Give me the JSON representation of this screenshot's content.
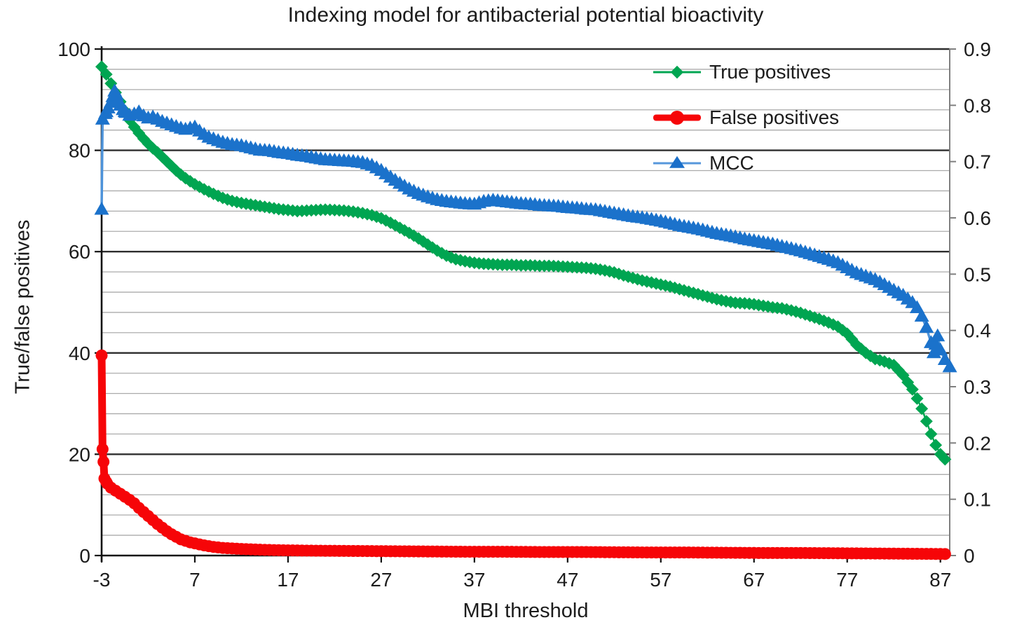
{
  "title": "Indexing model for antibacterial potential bioactivity",
  "chart_data": {
    "type": "line",
    "title": "Indexing model for antibacterial potential bioactivity",
    "xlabel": "MBI threshold",
    "ylabel_left": "True/false positives",
    "ylabel_right": "",
    "x_axis": {
      "range": [
        -3,
        88
      ],
      "ticks": [
        -3,
        7,
        17,
        27,
        37,
        47,
        57,
        67,
        77,
        87
      ]
    },
    "y_axis_left": {
      "range": [
        0,
        100
      ],
      "ticks": [
        0,
        20,
        40,
        60,
        80,
        100
      ],
      "major_gridline_step": 20,
      "minor_gridline_step": 4
    },
    "y_axis_right": {
      "range": [
        0,
        0.9
      ],
      "ticks": [
        0,
        0.1,
        0.2,
        0.3,
        0.4,
        0.5,
        0.6,
        0.7,
        0.8,
        0.9
      ],
      "tick_labels": [
        "0",
        "0.1",
        "0.2",
        "0.3",
        "0.4",
        "0.5",
        "0.6",
        "0.7",
        "0.8",
        "0.9"
      ]
    },
    "legend_position": "top-right",
    "grid": true,
    "marker_x_step": 0.5,
    "series": [
      {
        "name": "True positives",
        "axis": "left",
        "marker": "diamond",
        "color": "#00A551",
        "line_color": "#00A551",
        "line_width": 2.5,
        "points": [
          [
            -3,
            96.5
          ],
          [
            -2.5,
            95
          ],
          [
            -2,
            93.2
          ],
          [
            -1.5,
            91.4
          ],
          [
            -1,
            89.6
          ],
          [
            -0.5,
            87.8
          ],
          [
            0,
            86
          ],
          [
            0.5,
            84.6
          ],
          [
            1,
            83.4
          ],
          [
            1.5,
            82.3
          ],
          [
            2,
            81.3
          ],
          [
            2.5,
            80.4
          ],
          [
            3,
            79.6
          ],
          [
            3.5,
            78.7
          ],
          [
            4,
            77.8
          ],
          [
            4.5,
            76.9
          ],
          [
            5,
            76
          ],
          [
            5.5,
            75.2
          ],
          [
            6,
            74.5
          ],
          [
            6.5,
            73.9
          ],
          [
            7,
            73.3
          ],
          [
            7.5,
            72.8
          ],
          [
            8,
            72.3
          ],
          [
            9,
            71.4
          ],
          [
            10,
            70.6
          ],
          [
            11,
            70
          ],
          [
            12,
            69.6
          ],
          [
            13,
            69.3
          ],
          [
            14,
            69
          ],
          [
            15,
            68.7
          ],
          [
            16,
            68.4
          ],
          [
            17,
            68.2
          ],
          [
            18,
            68
          ],
          [
            19,
            68.1
          ],
          [
            20,
            68.2
          ],
          [
            21,
            68.3
          ],
          [
            22,
            68.2
          ],
          [
            23,
            68.1
          ],
          [
            24,
            67.9
          ],
          [
            25,
            67.6
          ],
          [
            26,
            67.2
          ],
          [
            27,
            66.6
          ],
          [
            28,
            65.7
          ],
          [
            29,
            64.7
          ],
          [
            30,
            63.7
          ],
          [
            31,
            62.6
          ],
          [
            32,
            61.4
          ],
          [
            33,
            60.2
          ],
          [
            34,
            59.2
          ],
          [
            35,
            58.5
          ],
          [
            36,
            58.1
          ],
          [
            37,
            57.8
          ],
          [
            38,
            57.6
          ],
          [
            39,
            57.5
          ],
          [
            40,
            57.4
          ],
          [
            41,
            57.4
          ],
          [
            42,
            57.3
          ],
          [
            43,
            57.3
          ],
          [
            44,
            57.2
          ],
          [
            45,
            57.2
          ],
          [
            46,
            57.1
          ],
          [
            47,
            57
          ],
          [
            48,
            56.9
          ],
          [
            49,
            56.8
          ],
          [
            50,
            56.6
          ],
          [
            51,
            56.3
          ],
          [
            52,
            55.9
          ],
          [
            53,
            55.3
          ],
          [
            54,
            54.8
          ],
          [
            55,
            54.3
          ],
          [
            56,
            53.9
          ],
          [
            57,
            53.5
          ],
          [
            58,
            53.1
          ],
          [
            59,
            52.6
          ],
          [
            60,
            52.1
          ],
          [
            61,
            51.6
          ],
          [
            62,
            51.1
          ],
          [
            63,
            50.6
          ],
          [
            64,
            50.2
          ],
          [
            65,
            49.9
          ],
          [
            66,
            49.8
          ],
          [
            67,
            49.6
          ],
          [
            68,
            49.3
          ],
          [
            69,
            49
          ],
          [
            70,
            48.8
          ],
          [
            71,
            48.4
          ],
          [
            72,
            47.9
          ],
          [
            73,
            47.3
          ],
          [
            74,
            46.7
          ],
          [
            75,
            46
          ],
          [
            76,
            45.2
          ],
          [
            77,
            43.8
          ],
          [
            78,
            41.6
          ],
          [
            79,
            40
          ],
          [
            80,
            38.8
          ],
          [
            81,
            38.3
          ],
          [
            82,
            37.6
          ],
          [
            83,
            35.6
          ],
          [
            84,
            32.8
          ],
          [
            84.5,
            31
          ],
          [
            85,
            29
          ],
          [
            85.5,
            26.5
          ],
          [
            86,
            24
          ],
          [
            86.5,
            21.8
          ],
          [
            87,
            20
          ],
          [
            87.5,
            19
          ]
        ]
      },
      {
        "name": "False positives",
        "axis": "left",
        "marker": "circle",
        "color": "#F60508",
        "line_color": "#F60508",
        "line_width": 11,
        "points": [
          [
            -3,
            39.5
          ],
          [
            -2.9,
            21
          ],
          [
            -2.8,
            18.5
          ],
          [
            -2.7,
            15.2
          ],
          [
            -2.4,
            14.2
          ],
          [
            -2,
            13.4
          ],
          [
            -1.5,
            12.8
          ],
          [
            -1,
            12.2
          ],
          [
            -0.5,
            11.6
          ],
          [
            0,
            11
          ],
          [
            0.5,
            10.3
          ],
          [
            1,
            9.4
          ],
          [
            1.5,
            8.6
          ],
          [
            2,
            7.8
          ],
          [
            2.5,
            7
          ],
          [
            3,
            6.2
          ],
          [
            3.5,
            5.5
          ],
          [
            4,
            4.8
          ],
          [
            4.5,
            4.2
          ],
          [
            5,
            3.7
          ],
          [
            5.5,
            3.2
          ],
          [
            6,
            2.9
          ],
          [
            6.5,
            2.6
          ],
          [
            7,
            2.4
          ],
          [
            7.5,
            2.2
          ],
          [
            8,
            2
          ],
          [
            9,
            1.7
          ],
          [
            10,
            1.5
          ],
          [
            11,
            1.4
          ],
          [
            12,
            1.3
          ],
          [
            14,
            1.15
          ],
          [
            16,
            1.05
          ],
          [
            18,
            1
          ],
          [
            20,
            0.95
          ],
          [
            24,
            0.9
          ],
          [
            28,
            0.85
          ],
          [
            32,
            0.8
          ],
          [
            36,
            0.75
          ],
          [
            40,
            0.75
          ],
          [
            44,
            0.7
          ],
          [
            48,
            0.7
          ],
          [
            52,
            0.65
          ],
          [
            56,
            0.6
          ],
          [
            60,
            0.6
          ],
          [
            64,
            0.55
          ],
          [
            68,
            0.5
          ],
          [
            72,
            0.5
          ],
          [
            76,
            0.45
          ],
          [
            80,
            0.4
          ],
          [
            84,
            0.35
          ],
          [
            87.5,
            0.3
          ]
        ]
      },
      {
        "name": "MCC",
        "axis": "right",
        "marker": "triangle",
        "color": "#1B72CB",
        "line_color": "#4D93DA",
        "line_width": 3.5,
        "points": [
          [
            -3,
            0.615
          ],
          [
            -2.9,
            0.775
          ],
          [
            -2.6,
            0.785
          ],
          [
            -2.3,
            0.795
          ],
          [
            -2,
            0.805
          ],
          [
            -1.8,
            0.815
          ],
          [
            -1.6,
            0.825
          ],
          [
            -1.4,
            0.818
          ],
          [
            -1.2,
            0.808
          ],
          [
            -1,
            0.8
          ],
          [
            -0.7,
            0.792
          ],
          [
            -0.4,
            0.787
          ],
          [
            0,
            0.782
          ],
          [
            0.5,
            0.784
          ],
          [
            1,
            0.788
          ],
          [
            1.5,
            0.781
          ],
          [
            2,
            0.777
          ],
          [
            2.5,
            0.779
          ],
          [
            3,
            0.775
          ],
          [
            3.5,
            0.771
          ],
          [
            4,
            0.768
          ],
          [
            4.5,
            0.765
          ],
          [
            5,
            0.762
          ],
          [
            5.5,
            0.759
          ],
          [
            6,
            0.757
          ],
          [
            6.5,
            0.759
          ],
          [
            7,
            0.761
          ],
          [
            7.5,
            0.754
          ],
          [
            8,
            0.748
          ],
          [
            8.5,
            0.743
          ],
          [
            9,
            0.74
          ],
          [
            10,
            0.734
          ],
          [
            11,
            0.73
          ],
          [
            12,
            0.728
          ],
          [
            13,
            0.724
          ],
          [
            14,
            0.72
          ],
          [
            15,
            0.719
          ],
          [
            16,
            0.716
          ],
          [
            17,
            0.714
          ],
          [
            18,
            0.711
          ],
          [
            19,
            0.709
          ],
          [
            20,
            0.706
          ],
          [
            21,
            0.703
          ],
          [
            22,
            0.702
          ],
          [
            23,
            0.701
          ],
          [
            24,
            0.7
          ],
          [
            25,
            0.698
          ],
          [
            26,
            0.693
          ],
          [
            27,
            0.684
          ],
          [
            28,
            0.672
          ],
          [
            29,
            0.661
          ],
          [
            30,
            0.651
          ],
          [
            31,
            0.643
          ],
          [
            32,
            0.637
          ],
          [
            33,
            0.632
          ],
          [
            34,
            0.629
          ],
          [
            35,
            0.627
          ],
          [
            36,
            0.625
          ],
          [
            37,
            0.624
          ],
          [
            38,
            0.629
          ],
          [
            39,
            0.631
          ],
          [
            40,
            0.629
          ],
          [
            41,
            0.627
          ],
          [
            42,
            0.625
          ],
          [
            43,
            0.624
          ],
          [
            44,
            0.622
          ],
          [
            45,
            0.621
          ],
          [
            46,
            0.62
          ],
          [
            47,
            0.618
          ],
          [
            48,
            0.617
          ],
          [
            49,
            0.615
          ],
          [
            50,
            0.614
          ],
          [
            51,
            0.611
          ],
          [
            52,
            0.608
          ],
          [
            53,
            0.605
          ],
          [
            54,
            0.602
          ],
          [
            55,
            0.6
          ],
          [
            56,
            0.597
          ],
          [
            57,
            0.594
          ],
          [
            58,
            0.59
          ],
          [
            59,
            0.586
          ],
          [
            60,
            0.583
          ],
          [
            61,
            0.58
          ],
          [
            62,
            0.576
          ],
          [
            63,
            0.572
          ],
          [
            64,
            0.569
          ],
          [
            65,
            0.566
          ],
          [
            66,
            0.562
          ],
          [
            67,
            0.559
          ],
          [
            68,
            0.556
          ],
          [
            69,
            0.553
          ],
          [
            70,
            0.549
          ],
          [
            71,
            0.545
          ],
          [
            72,
            0.541
          ],
          [
            73,
            0.536
          ],
          [
            74,
            0.531
          ],
          [
            75,
            0.526
          ],
          [
            76,
            0.52
          ],
          [
            77,
            0.511
          ],
          [
            78,
            0.502
          ],
          [
            79,
            0.496
          ],
          [
            80,
            0.49
          ],
          [
            81,
            0.481
          ],
          [
            82,
            0.471
          ],
          [
            83,
            0.462
          ],
          [
            84,
            0.449
          ],
          [
            84.5,
            0.44
          ],
          [
            85,
            0.425
          ],
          [
            85.5,
            0.405
          ],
          [
            86,
            0.378
          ],
          [
            86.3,
            0.36
          ],
          [
            86.7,
            0.39
          ],
          [
            87,
            0.365
          ],
          [
            87.5,
            0.348
          ],
          [
            88,
            0.335
          ]
        ]
      }
    ],
    "colors": {
      "major_gridline": "#2e2e2e",
      "minor_gridline": "#ababab",
      "axis_left_bottom": "#111111",
      "axis_right": "#7f7f7f",
      "text": "#1c1c1c",
      "background": "#ffffff"
    }
  }
}
